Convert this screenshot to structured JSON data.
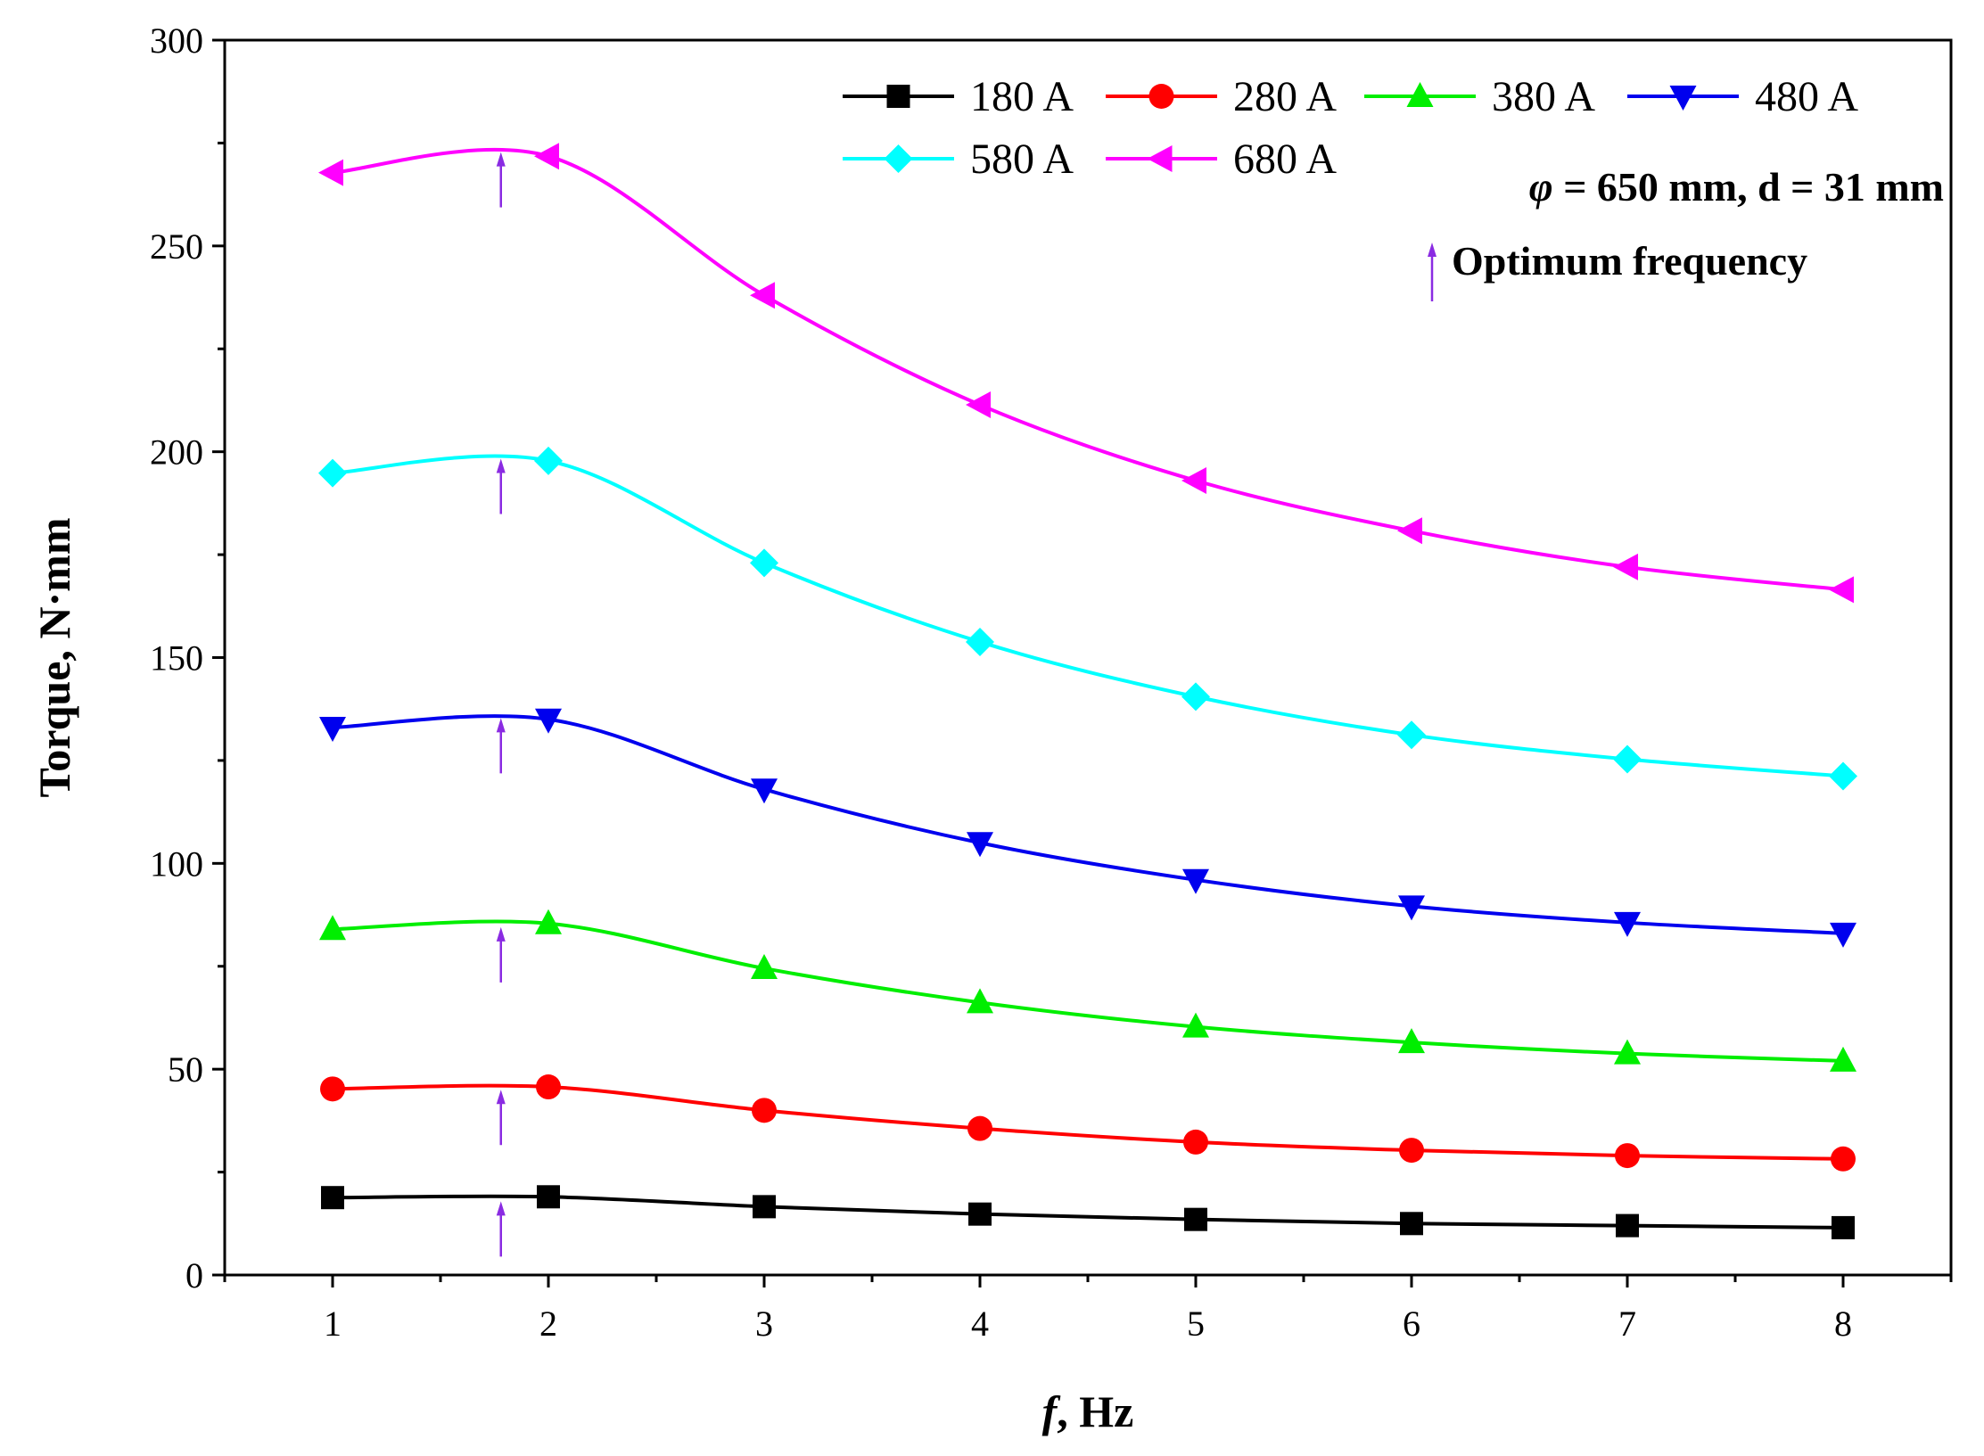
{
  "chart_data": {
    "type": "line",
    "title": "",
    "xlabel": "Hz",
    "xlabel_italic": "f",
    "xlabel_sep": ", ",
    "ylabel": "Torque, N·mm",
    "xlim": [
      0.5,
      8.5
    ],
    "ylim": [
      0,
      300
    ],
    "x_ticks": [
      1,
      2,
      3,
      4,
      5,
      6,
      7,
      8
    ],
    "y_ticks": [
      0,
      50,
      100,
      150,
      200,
      250,
      300
    ],
    "grid": false,
    "legend_position": "top-right",
    "x": [
      1,
      2,
      3,
      4,
      5,
      6,
      7,
      8
    ],
    "series": [
      {
        "name": "180 A",
        "color": "#000000",
        "marker": "square",
        "values": [
          18.8,
          19.0,
          16.6,
          14.8,
          13.5,
          12.5,
          12.0,
          11.5
        ]
      },
      {
        "name": "280 A",
        "color": "#ff0000",
        "marker": "circle",
        "values": [
          45.2,
          45.7,
          40.0,
          35.6,
          32.3,
          30.3,
          29.0,
          28.2
        ]
      },
      {
        "name": "380 A",
        "color": "#00ee00",
        "marker": "triangle-up",
        "values": [
          84.0,
          85.4,
          74.5,
          66.2,
          60.3,
          56.5,
          53.8,
          52.0
        ]
      },
      {
        "name": "480 A",
        "color": "#0000ee",
        "marker": "triangle-down",
        "values": [
          133.0,
          135.0,
          118.0,
          105.0,
          96.0,
          89.6,
          85.6,
          83.0
        ]
      },
      {
        "name": "580 A",
        "color": "#00ffff",
        "marker": "diamond",
        "values": [
          194.8,
          197.8,
          173.0,
          153.8,
          140.5,
          131.2,
          125.3,
          121.2
        ]
      },
      {
        "name": "680 A",
        "color": "#ff00ff",
        "marker": "triangle-left",
        "values": [
          267.8,
          271.8,
          238.0,
          211.4,
          193.0,
          180.8,
          172.0,
          166.5
        ]
      }
    ],
    "optimum_frequency_arrows": {
      "x": 1.78,
      "color": "#8a2be2",
      "series_peaks": [
        19.2,
        46.3,
        85.8,
        136.6,
        199.6,
        274.1
      ]
    },
    "annotations": {
      "params_phi": "φ",
      "params_rest": " = 650 mm, d = 31 mm",
      "optimum_label": "Optimum frequency"
    }
  }
}
